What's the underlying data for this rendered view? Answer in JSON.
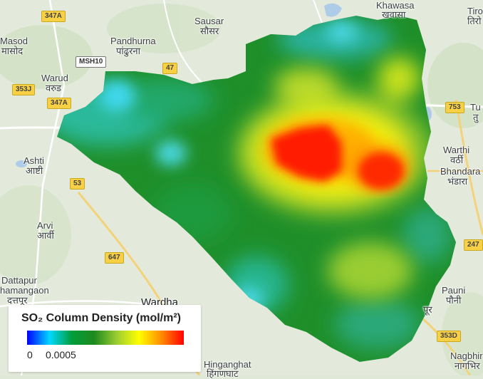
{
  "legend": {
    "title": "SO₂ Column Density (mol/m²)",
    "min_label": "0",
    "mid_label": "0.0005",
    "colors": [
      "#0000ff",
      "#00d8ff",
      "#009e3a",
      "#1e8a1e",
      "#9acd32",
      "#ffff00",
      "#ff8c00",
      "#ff0000"
    ]
  },
  "places": [
    {
      "id": "masod",
      "text": "Masod"
    },
    {
      "id": "masod-hi",
      "text": "मासोद"
    },
    {
      "id": "pandhurna",
      "text": "Pandhurna"
    },
    {
      "id": "pandhurna-hi",
      "text": "पांढुरना"
    },
    {
      "id": "sausar",
      "text": "Sausar"
    },
    {
      "id": "sausar-hi",
      "text": "सौसर"
    },
    {
      "id": "khawasa",
      "text": "Khawasa"
    },
    {
      "id": "khawasa-hi",
      "text": "खवासा"
    },
    {
      "id": "tiro",
      "text": "Tiro"
    },
    {
      "id": "tiro-hi",
      "text": "तिरो"
    },
    {
      "id": "warud",
      "text": "Warud"
    },
    {
      "id": "warud-hi",
      "text": "वरुड"
    },
    {
      "id": "ashti",
      "text": "Ashti"
    },
    {
      "id": "ashti-hi",
      "text": "आष्टी"
    },
    {
      "id": "arvi",
      "text": "Arvi"
    },
    {
      "id": "arvi-hi",
      "text": "आर्वी"
    },
    {
      "id": "dattapur",
      "text": "Dattapur"
    },
    {
      "id": "dhamangaon",
      "text": "hamangaon"
    },
    {
      "id": "dattapur-hi",
      "text": "दत्तपूर"
    },
    {
      "id": "wardha",
      "text": "Wardha"
    },
    {
      "id": "hinganghat",
      "text": "Hinganghat"
    },
    {
      "id": "hinganghat-hi",
      "text": "हिंगणघाट"
    },
    {
      "id": "warthi",
      "text": "Warthi"
    },
    {
      "id": "warthi-hi",
      "text": "वर्ठी"
    },
    {
      "id": "bhandara",
      "text": "Bhandara"
    },
    {
      "id": "bhandara-hi",
      "text": "भंडारा"
    },
    {
      "id": "tu",
      "text": "Tu"
    },
    {
      "id": "tu-hi",
      "text": "तु"
    },
    {
      "id": "pauni",
      "text": "Pauni"
    },
    {
      "id": "pauni-hi",
      "text": "पौनी"
    },
    {
      "id": "pur-hi",
      "text": "पूर"
    },
    {
      "id": "nagbhir",
      "text": "Nagbhir"
    },
    {
      "id": "nagbhir-hi",
      "text": "नागभिर"
    }
  ],
  "roads": [
    {
      "id": "r347a-top",
      "text": "347A"
    },
    {
      "id": "rmsh10",
      "text": "MSH10"
    },
    {
      "id": "r47",
      "text": "47"
    },
    {
      "id": "r353j",
      "text": "353J"
    },
    {
      "id": "r347a",
      "text": "347A"
    },
    {
      "id": "r753",
      "text": "753"
    },
    {
      "id": "r53",
      "text": "53"
    },
    {
      "id": "r647",
      "text": "647"
    },
    {
      "id": "r247",
      "text": "247"
    },
    {
      "id": "r353d",
      "text": "353D"
    }
  ]
}
